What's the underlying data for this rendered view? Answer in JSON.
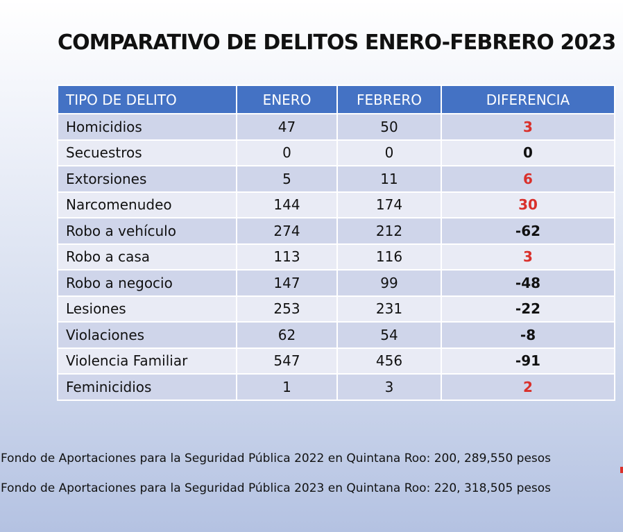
{
  "title": "COMPARATIVO DE DELITOS ENERO-FEBRERO 2023",
  "table": {
    "headers": [
      "TIPO DE DELITO",
      "ENERO",
      "FEBRERO",
      "DIFERENCIA"
    ],
    "rows": [
      {
        "tipo": "Homicidios",
        "enero": "47",
        "febrero": "50",
        "diferencia": "3",
        "trend": "up"
      },
      {
        "tipo": "Secuestros",
        "enero": "0",
        "febrero": "0",
        "diferencia": "0",
        "trend": "neutral"
      },
      {
        "tipo": "Extorsiones",
        "enero": "5",
        "febrero": "11",
        "diferencia": "6",
        "trend": "up"
      },
      {
        "tipo": "Narcomenudeo",
        "enero": "144",
        "febrero": "174",
        "diferencia": "30",
        "trend": "up"
      },
      {
        "tipo": "Robo a vehículo",
        "enero": "274",
        "febrero": "212",
        "diferencia": "-62",
        "trend": "down"
      },
      {
        "tipo": "Robo a casa",
        "enero": "113",
        "febrero": "116",
        "diferencia": "3",
        "trend": "up"
      },
      {
        "tipo": "Robo a negocio",
        "enero": "147",
        "febrero": "99",
        "diferencia": "-48",
        "trend": "down"
      },
      {
        "tipo": "Lesiones",
        "enero": "253",
        "febrero": "231",
        "diferencia": "-22",
        "trend": "down"
      },
      {
        "tipo": "Violaciones",
        "enero": "62",
        "febrero": "54",
        "diferencia": "-8",
        "trend": "down"
      },
      {
        "tipo": "Violencia Familiar",
        "enero": "547",
        "febrero": "456",
        "diferencia": "-91",
        "trend": "down"
      },
      {
        "tipo": "Feminicidios",
        "enero": "1",
        "febrero": "3",
        "diferencia": "2",
        "trend": "up"
      }
    ]
  },
  "notes": {
    "fondo_2022": "Fondo de Aportaciones para la Seguridad Pública 2022 en Quintana Roo: 200, 289,550 pesos",
    "fondo_2023": "Fondo de Aportaciones para la Seguridad Pública 2023 en Quintana Roo: 220, 318,505 pesos"
  },
  "colors": {
    "header_bg": "#4472c4",
    "row_odd": "#cfd5ea",
    "row_even": "#e9ebf5",
    "increase": "#d9302b"
  }
}
